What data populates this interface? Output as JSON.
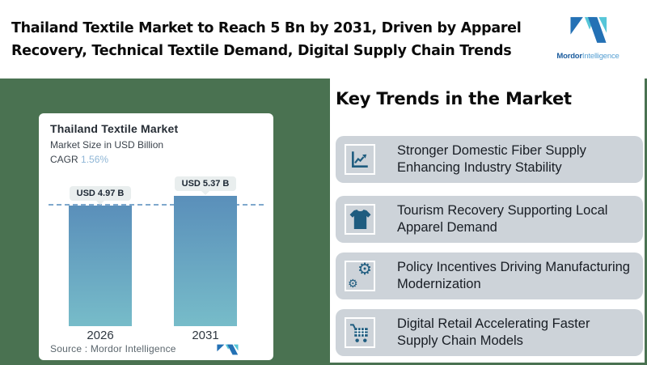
{
  "header": {
    "title_line1": "Thailand Textile Market to Reach 5 Bn by 2031, Driven by Apparel",
    "title_line2": "Recovery, Technical Textile Demand, Digital Supply Chain Trends"
  },
  "logo": {
    "brand_bold": "Mordor",
    "brand_light": "Intelligence"
  },
  "chart_card": {
    "title": "Thailand Textile Market",
    "subtitle": "Market Size in USD Billion",
    "cagr_label": "CAGR",
    "cagr_value": "1.56%",
    "source_label": "Source :  Mordor Intelligence"
  },
  "chart_data": {
    "type": "bar",
    "title": "Thailand Textile Market",
    "subtitle": "Market Size in USD Billion",
    "cagr": "1.56%",
    "unit": "USD Billion",
    "categories": [
      "2026",
      "2031"
    ],
    "values": [
      4.97,
      5.37
    ],
    "value_labels": [
      "USD 4.97 B",
      "USD 5.37 B"
    ],
    "source": "Mordor Intelligence",
    "bar_gradient": [
      "#5a8fba",
      "#77bcc9"
    ],
    "reference_line": {
      "at_value": 4.97,
      "style": "dashed",
      "color": "#7fa8cd"
    },
    "legend": "none",
    "grid": false
  },
  "trends": {
    "heading": "Key Trends in the Market",
    "items": [
      {
        "icon": "line-chart-icon",
        "line1": "Stronger Domestic Fiber Supply",
        "line2": "Enhancing Industry Stability"
      },
      {
        "icon": "tshirt-icon",
        "line1": "Tourism Recovery Supporting Local",
        "line2": "Apparel Demand"
      },
      {
        "icon": "gears-icon",
        "line1": "Policy Incentives Driving Manufacturing",
        "line2": "Modernization"
      },
      {
        "icon": "cart-icon",
        "line1": "Digital Retail Accelerating Faster",
        "line2": "Supply Chain Models"
      }
    ]
  },
  "colors": {
    "background_green": "#4a7251",
    "card_white": "#ffffff",
    "trend_card_gray": "#cdd3d9",
    "icon_blue": "#1e5c7f",
    "logo_dark_blue": "#2471b5",
    "logo_teal": "#56c6d8",
    "cagr_value_blue": "#8fb6d6",
    "pill_bg": "#e9eeee",
    "title_black": "#0b0b0b"
  }
}
